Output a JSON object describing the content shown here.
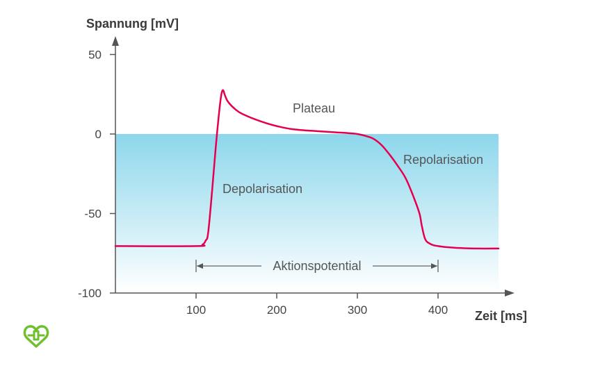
{
  "chart_data": {
    "type": "line",
    "title": "",
    "ylabel": "Spannung [mV]",
    "xlabel": "Zeit [ms]",
    "xlim": [
      0,
      475
    ],
    "ylim": [
      -100,
      50
    ],
    "xticks": [
      100,
      200,
      300,
      400
    ],
    "xtick_labels": [
      "100",
      "200",
      "300",
      "400"
    ],
    "yticks": [
      50,
      0,
      -50,
      -100
    ],
    "ytick_labels": [
      "50",
      "0",
      "-50",
      "-100"
    ],
    "grid": false,
    "legend": "none",
    "shaded_region": {
      "y_from": -100,
      "y_to": 0,
      "color_top": "#8dd7ec",
      "color_bottom": "#ffffff"
    },
    "series": [
      {
        "color": "#e5004f",
        "x": [
          0,
          100,
          108,
          112,
          115,
          120,
          125,
          130,
          133,
          136,
          140,
          150,
          160,
          180,
          200,
          220,
          250,
          275,
          290,
          300,
          310,
          320,
          330,
          340,
          350,
          360,
          370,
          377,
          380,
          384,
          390,
          400,
          420,
          450,
          475
        ],
        "y": [
          -70.5,
          -70.5,
          -69.5,
          -67,
          -62,
          -35,
          -5,
          20,
          27.5,
          24,
          20,
          15,
          12,
          8,
          5,
          3,
          1.8,
          1,
          0.5,
          0,
          -1.2,
          -3,
          -7,
          -13,
          -20,
          -28,
          -40,
          -50,
          -58,
          -66,
          -69,
          -70.5,
          -71.5,
          -72,
          -72
        ]
      }
    ],
    "annotations": [
      {
        "text": "Plateau"
      },
      {
        "text": "Repolarisation"
      },
      {
        "text": "Depolarisation"
      },
      {
        "text": "Aktionspotential",
        "x_from": 100,
        "x_to": 400,
        "y": -83
      }
    ]
  },
  "logo": {
    "icon": "heart-plus-icon",
    "color": "#6fbf2e"
  }
}
